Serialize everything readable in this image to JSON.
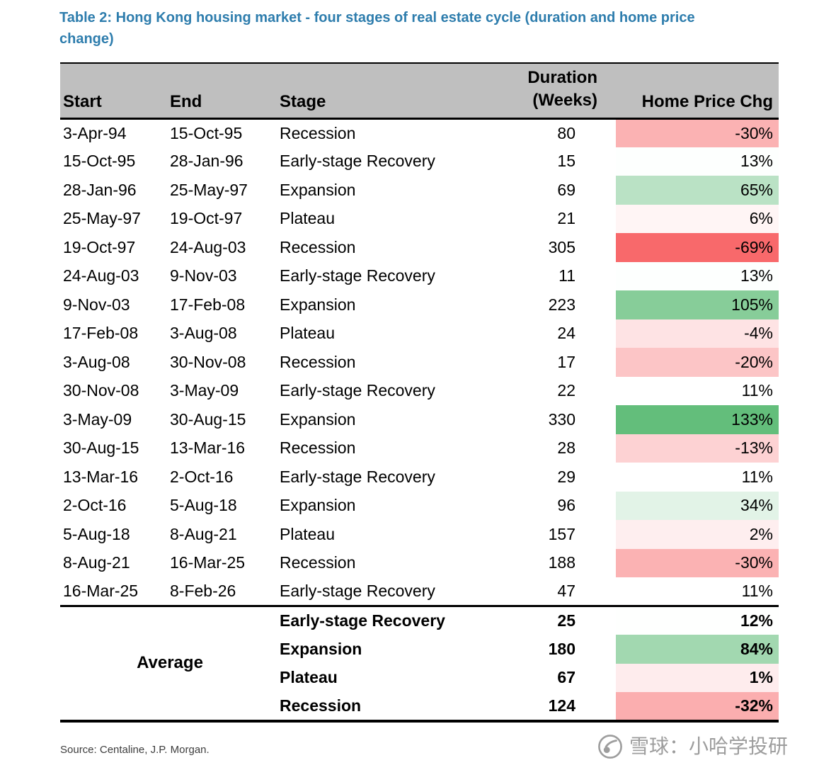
{
  "title": {
    "line1": "Table 2: Hong Kong housing market - four stages of real estate cycle (duration and home price",
    "line2": "change)"
  },
  "table": {
    "headers": {
      "start": "Start",
      "end": "End",
      "stage": "Stage",
      "duration_line1": "Duration",
      "duration_line2": "(Weeks)",
      "price": "Home Price Chg"
    }
  },
  "chart_data": {
    "type": "table",
    "title": "Table 2: Hong Kong housing market - four stages of real estate cycle (duration and home price change)",
    "columns": [
      "Start",
      "End",
      "Stage",
      "Duration (Weeks)",
      "Home Price Chg"
    ],
    "average_label": "Average",
    "rows": [
      {
        "start": "3-Apr-94",
        "end": "15-Oct-95",
        "stage": "Recession",
        "duration": 80,
        "price_chg": "-30%",
        "price_color": "#FBB2B3"
      },
      {
        "start": "15-Oct-95",
        "end": "28-Jan-96",
        "stage": "Early-stage Recovery",
        "duration": 15,
        "price_chg": "13%",
        "price_color": "#FDFFFE"
      },
      {
        "start": "28-Jan-96",
        "end": "25-May-97",
        "stage": "Expansion",
        "duration": 69,
        "price_chg": "65%",
        "price_color": "#BAE2C5"
      },
      {
        "start": "25-May-97",
        "end": "19-Oct-97",
        "stage": "Plateau",
        "duration": 21,
        "price_chg": "6%",
        "price_color": "#FFF5F5"
      },
      {
        "start": "19-Oct-97",
        "end": "24-Aug-03",
        "stage": "Recession",
        "duration": 305,
        "price_chg": "-69%",
        "price_color": "#F8696B"
      },
      {
        "start": "24-Aug-03",
        "end": "9-Nov-03",
        "stage": "Early-stage Recovery",
        "duration": 11,
        "price_chg": "13%",
        "price_color": "#FDFFFE"
      },
      {
        "start": "9-Nov-03",
        "end": "17-Feb-08",
        "stage": "Expansion",
        "duration": 223,
        "price_chg": "105%",
        "price_color": "#87CD99"
      },
      {
        "start": "17-Feb-08",
        "end": "3-Aug-08",
        "stage": "Plateau",
        "duration": 24,
        "price_chg": "-4%",
        "price_color": "#FEE3E4"
      },
      {
        "start": "3-Aug-08",
        "end": "30-Nov-08",
        "stage": "Recession",
        "duration": 17,
        "price_chg": "-20%",
        "price_color": "#FCC5C6"
      },
      {
        "start": "30-Nov-08",
        "end": "3-May-09",
        "stage": "Early-stage Recovery",
        "duration": 22,
        "price_chg": "11%",
        "price_color": "#FFFFFF"
      },
      {
        "start": "3-May-09",
        "end": "30-Aug-15",
        "stage": "Expansion",
        "duration": 330,
        "price_chg": "133%",
        "price_color": "#63BE7B"
      },
      {
        "start": "30-Aug-15",
        "end": "13-Mar-16",
        "stage": "Recession",
        "duration": 28,
        "price_chg": "-13%",
        "price_color": "#FDD2D3"
      },
      {
        "start": "13-Mar-16",
        "end": "2-Oct-16",
        "stage": "Early-stage Recovery",
        "duration": 29,
        "price_chg": "11%",
        "price_color": "#FFFFFF"
      },
      {
        "start": "2-Oct-16",
        "end": "5-Aug-18",
        "stage": "Expansion",
        "duration": 96,
        "price_chg": "34%",
        "price_color": "#E2F3E7"
      },
      {
        "start": "5-Aug-18",
        "end": "8-Aug-21",
        "stage": "Plateau",
        "duration": 157,
        "price_chg": "2%",
        "price_color": "#FEEEEF"
      },
      {
        "start": "8-Aug-21",
        "end": "16-Mar-25",
        "stage": "Recession",
        "duration": 188,
        "price_chg": "-30%",
        "price_color": "#FBB2B3"
      },
      {
        "start": "16-Mar-25",
        "end": "8-Feb-26",
        "stage": "Early-stage Recovery",
        "duration": 47,
        "price_chg": "11%",
        "price_color": "#FFFFFF"
      }
    ],
    "averages": [
      {
        "stage": "Early-stage Recovery",
        "duration": 25,
        "price_chg": "12%",
        "price_color": "#FEFFFE"
      },
      {
        "stage": "Expansion",
        "duration": 180,
        "price_chg": "84%",
        "price_color": "#A2D8B0"
      },
      {
        "stage": "Plateau",
        "duration": 67,
        "price_chg": "1%",
        "price_color": "#FEECED"
      },
      {
        "stage": "Recession",
        "duration": 124,
        "price_chg": "-32%",
        "price_color": "#FBAEAF"
      }
    ]
  },
  "source": "Source: Centaline, J.P. Morgan.",
  "watermark": {
    "text": "雪球：小哈学投研"
  },
  "colors": {
    "title": "#2E7DAD",
    "header_bg": "#BFBFBF",
    "scale_min_red": "#F8696B",
    "scale_mid_white": "#FFFFFF",
    "scale_max_green": "#63BE7B",
    "watermark_gray": "#9D9D9D"
  }
}
